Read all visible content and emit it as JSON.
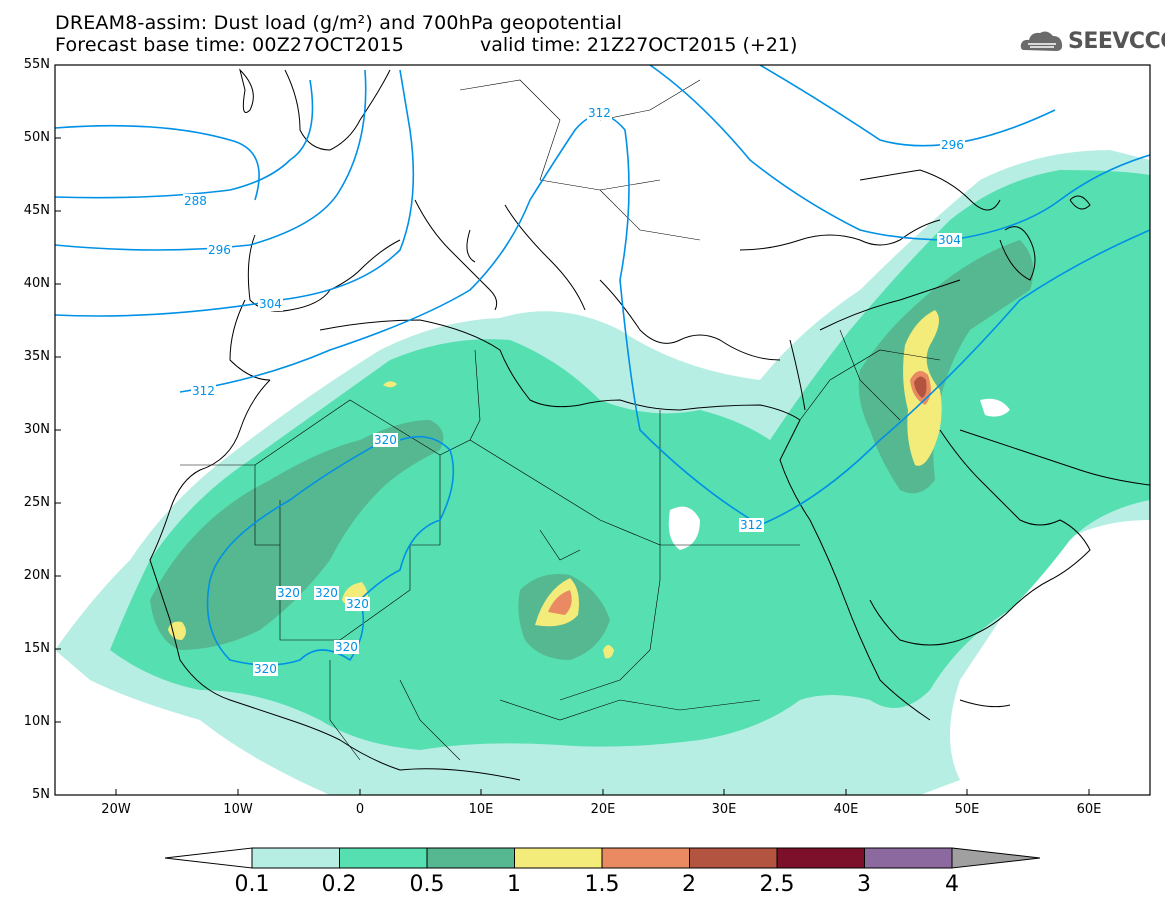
{
  "header": {
    "line1": "DREAM8-assim: Dust load (g/m²) and 700hPa geopotential",
    "line2": "Forecast base time: 00Z27OCT2015",
    "valid": "valid time: 21Z27OCT2015 (+21)",
    "logo": "SEEVCCC"
  },
  "axes": {
    "lat_labels": [
      "55N",
      "50N",
      "45N",
      "40N",
      "35N",
      "30N",
      "25N",
      "20N",
      "15N",
      "10N",
      "5N"
    ],
    "lon_labels": [
      "20W",
      "10W",
      "0",
      "10E",
      "20E",
      "30E",
      "40E",
      "50E",
      "60E"
    ]
  },
  "contours": {
    "labels": [
      "312",
      "288",
      "296",
      "304",
      "312",
      "296",
      "304",
      "320",
      "312",
      "320",
      "320",
      "320",
      "320",
      "320"
    ]
  },
  "colorbar": {
    "labels": [
      "0.1",
      "0.2",
      "0.5",
      "1",
      "1.5",
      "2",
      "2.5",
      "3",
      "4"
    ],
    "colors": [
      "#b7eee4",
      "#56dfb1",
      "#56b890",
      "#f3eb7a",
      "#e98a62",
      "#b35440",
      "#7c0f29",
      "#8c6aa0"
    ]
  },
  "colors": {
    "contour": "#0091e6",
    "coast": "#000000",
    "dust_light": "#b7eee4",
    "dust_mid": "#56dfb1",
    "dust_dark": "#56b890",
    "dust_yellow": "#f3eb7a",
    "dust_orange": "#e98a62",
    "dust_red": "#b35440"
  }
}
